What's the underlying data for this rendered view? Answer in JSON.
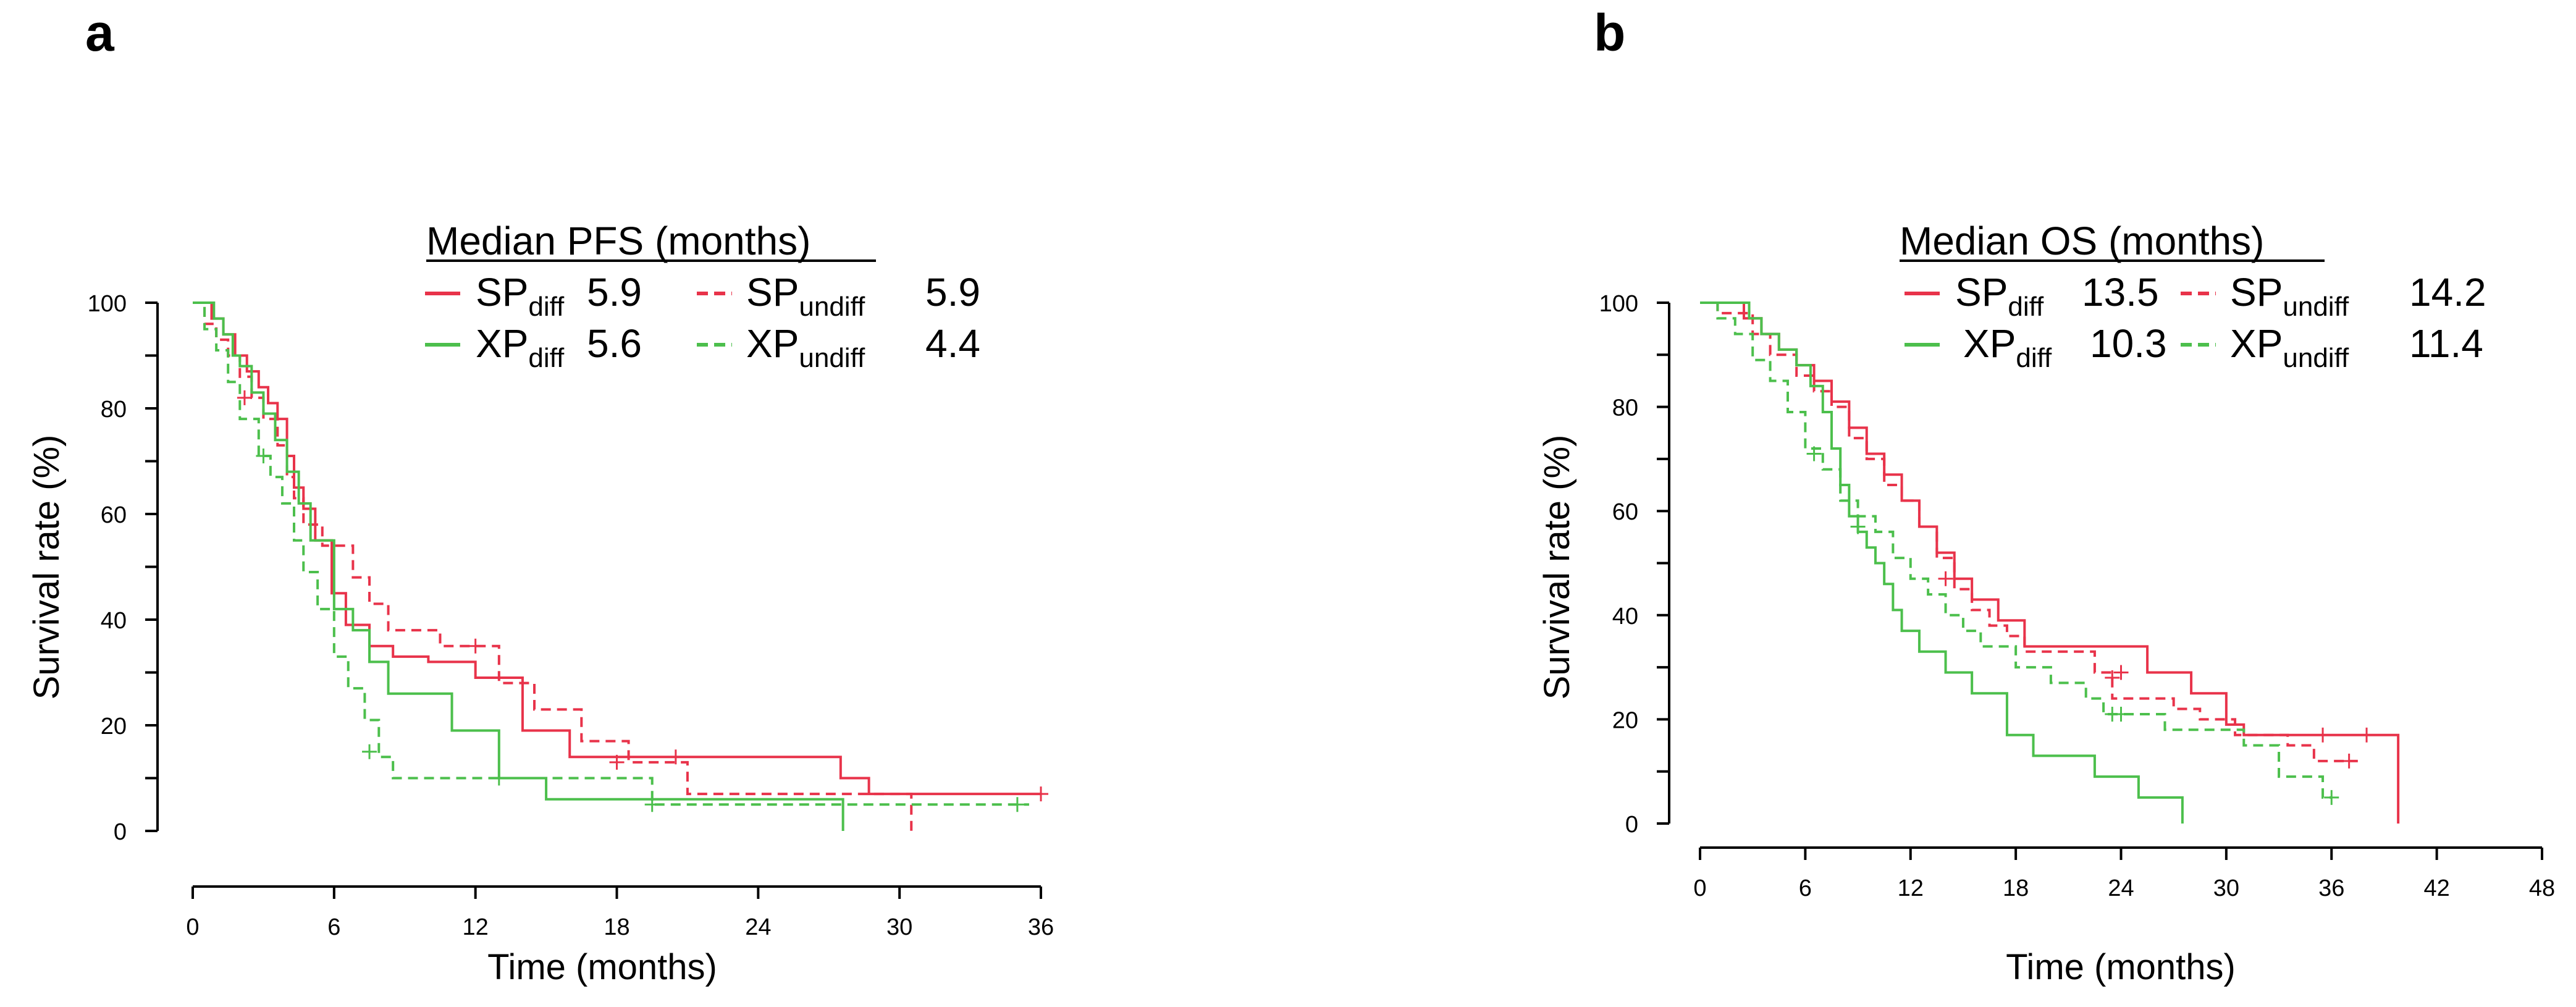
{
  "chart_data": [
    {
      "panel": "a",
      "type": "line",
      "title": "Median PFS (months)",
      "xlabel": "Time (months)",
      "ylabel": "Survival rate (%)",
      "xlim": [
        0,
        36
      ],
      "ylim": [
        0,
        100
      ],
      "xticks": [
        "0",
        "6",
        "12",
        "18",
        "24",
        "30",
        "36"
      ],
      "yticks": [
        "0",
        "20",
        "40",
        "60",
        "80",
        "100"
      ],
      "legend": [
        {
          "key": "SP_diff",
          "base": "SP",
          "sub": "diff",
          "value": "5.9",
          "color": "#e8334a",
          "dash": "solid"
        },
        {
          "key": "SP_undiff",
          "base": "SP",
          "sub": "undiff",
          "value": "5.9",
          "color": "#e8334a",
          "dash": "dashed"
        },
        {
          "key": "XP_diff",
          "base": "XP",
          "sub": "diff",
          "value": "5.6",
          "color": "#4cbf4c",
          "dash": "solid"
        },
        {
          "key": "XP_undiff",
          "base": "XP",
          "sub": "undiff",
          "value": "4.4",
          "color": "#4cbf4c",
          "dash": "dashed"
        }
      ],
      "series": [
        {
          "name": "SP_diff",
          "color": "#e8334a",
          "dash": "solid",
          "steps": [
            [
              0,
              100
            ],
            [
              0.8,
              97
            ],
            [
              1.3,
              94
            ],
            [
              1.8,
              90
            ],
            [
              2.3,
              87
            ],
            [
              2.8,
              84
            ],
            [
              3.2,
              81
            ],
            [
              3.6,
              78
            ],
            [
              4.0,
              71
            ],
            [
              4.3,
              65
            ],
            [
              4.7,
              61
            ],
            [
              5.2,
              55
            ],
            [
              5.9,
              45
            ],
            [
              6.5,
              39
            ],
            [
              7.5,
              35
            ],
            [
              8.5,
              33
            ],
            [
              10.0,
              32
            ],
            [
              12.0,
              29
            ],
            [
              14.0,
              19
            ],
            [
              16.0,
              14
            ],
            [
              27.5,
              10
            ],
            [
              28.7,
              7
            ],
            [
              36,
              7
            ]
          ],
          "censors": [
            [
              20.5,
              14
            ],
            [
              36,
              7
            ]
          ]
        },
        {
          "name": "SP_undiff",
          "color": "#e8334a",
          "dash": "dashed",
          "steps": [
            [
              0,
              100
            ],
            [
              0.5,
              96
            ],
            [
              1.0,
              93
            ],
            [
              1.5,
              90
            ],
            [
              2.0,
              86
            ],
            [
              2.5,
              82
            ],
            [
              3.0,
              78
            ],
            [
              3.6,
              73
            ],
            [
              4.0,
              67
            ],
            [
              4.3,
              63
            ],
            [
              4.7,
              58
            ],
            [
              5.5,
              54
            ],
            [
              6.8,
              48
            ],
            [
              7.5,
              43
            ],
            [
              8.3,
              38
            ],
            [
              10.5,
              35
            ],
            [
              13.0,
              28
            ],
            [
              14.5,
              23
            ],
            [
              16.5,
              17
            ],
            [
              18.5,
              13
            ],
            [
              21.0,
              7
            ],
            [
              30.5,
              4
            ],
            [
              30.5,
              0
            ]
          ],
          "censors": [
            [
              2.2,
              82
            ],
            [
              12.0,
              35
            ],
            [
              18.0,
              13
            ]
          ]
        },
        {
          "name": "XP_diff",
          "color": "#4cbf4c",
          "dash": "solid",
          "steps": [
            [
              0,
              100
            ],
            [
              0.9,
              97
            ],
            [
              1.3,
              94
            ],
            [
              1.7,
              90
            ],
            [
              2.0,
              88
            ],
            [
              2.5,
              83
            ],
            [
              3.0,
              79
            ],
            [
              3.5,
              74
            ],
            [
              4.0,
              68
            ],
            [
              4.5,
              62
            ],
            [
              5.0,
              55
            ],
            [
              6.0,
              42
            ],
            [
              6.8,
              38
            ],
            [
              7.5,
              32
            ],
            [
              8.3,
              26
            ],
            [
              11.0,
              19
            ],
            [
              13.0,
              10
            ],
            [
              15.0,
              6
            ],
            [
              27.6,
              6
            ],
            [
              27.6,
              0
            ]
          ],
          "censors": []
        },
        {
          "name": "XP_undiff",
          "color": "#4cbf4c",
          "dash": "dashed",
          "steps": [
            [
              0,
              100
            ],
            [
              0.5,
              95
            ],
            [
              1.0,
              91
            ],
            [
              1.5,
              85
            ],
            [
              2.0,
              78
            ],
            [
              2.8,
              71
            ],
            [
              3.3,
              67
            ],
            [
              3.8,
              62
            ],
            [
              4.3,
              55
            ],
            [
              4.7,
              49
            ],
            [
              5.3,
              42
            ],
            [
              6.0,
              33
            ],
            [
              6.6,
              27
            ],
            [
              7.3,
              21
            ],
            [
              7.9,
              14
            ],
            [
              8.5,
              10
            ],
            [
              13.0,
              10
            ],
            [
              19.5,
              5
            ],
            [
              35.5,
              5
            ]
          ],
          "censors": [
            [
              3.0,
              71
            ],
            [
              7.5,
              15
            ],
            [
              13.0,
              10
            ],
            [
              19.5,
              5
            ],
            [
              35.0,
              5
            ]
          ]
        }
      ]
    },
    {
      "panel": "b",
      "type": "line",
      "title": "Median OS (months)",
      "xlabel": "Time (months)",
      "ylabel": "Survival rate (%)",
      "xlim": [
        0,
        48
      ],
      "ylim": [
        0,
        100
      ],
      "xticks": [
        "0",
        "6",
        "12",
        "18",
        "24",
        "30",
        "36",
        "42",
        "48"
      ],
      "yticks": [
        "0",
        "20",
        "40",
        "60",
        "80",
        "100"
      ],
      "legend": [
        {
          "key": "SP_diff",
          "base": "SP",
          "sub": "diff",
          "value": "13.5",
          "color": "#e8334a",
          "dash": "solid"
        },
        {
          "key": "SP_undiff",
          "base": "SP",
          "sub": "undiff",
          "value": "14.2",
          "color": "#e8334a",
          "dash": "dashed"
        },
        {
          "key": "XP_diff",
          "base": "XP",
          "sub": "diff",
          "value": "10.3",
          "color": "#4cbf4c",
          "dash": "solid"
        },
        {
          "key": "XP_undiff",
          "base": "XP",
          "sub": "undiff",
          "value": "11.4",
          "color": "#4cbf4c",
          "dash": "dashed"
        }
      ],
      "series": [
        {
          "name": "SP_diff",
          "color": "#e8334a",
          "dash": "solid",
          "steps": [
            [
              0,
              100
            ],
            [
              1.5,
              100
            ],
            [
              2.5,
              97
            ],
            [
              3.5,
              94
            ],
            [
              4.5,
              91
            ],
            [
              5.5,
              88
            ],
            [
              6.5,
              85
            ],
            [
              7.5,
              81
            ],
            [
              8.5,
              76
            ],
            [
              9.5,
              71
            ],
            [
              10.5,
              67
            ],
            [
              11.5,
              62
            ],
            [
              12.5,
              57
            ],
            [
              13.5,
              52
            ],
            [
              14.5,
              47
            ],
            [
              15.5,
              43
            ],
            [
              17.0,
              39
            ],
            [
              18.5,
              34
            ],
            [
              22.0,
              34
            ],
            [
              25.5,
              29
            ],
            [
              28.0,
              25
            ],
            [
              30.0,
              19
            ],
            [
              31.0,
              17
            ],
            [
              39.8,
              17
            ],
            [
              39.8,
              0
            ]
          ],
          "censors": [
            [
              24.0,
              29
            ],
            [
              35.5,
              17
            ],
            [
              38.0,
              17
            ]
          ]
        },
        {
          "name": "SP_undiff",
          "color": "#e8334a",
          "dash": "dashed",
          "steps": [
            [
              0,
              100
            ],
            [
              1.0,
              98
            ],
            [
              3.0,
              94
            ],
            [
              4.0,
              90
            ],
            [
              5.5,
              86
            ],
            [
              6.5,
              83
            ],
            [
              7.5,
              80
            ],
            [
              8.5,
              74
            ],
            [
              9.5,
              70
            ],
            [
              10.5,
              65
            ],
            [
              11.5,
              62
            ],
            [
              12.5,
              57
            ],
            [
              13.5,
              51
            ],
            [
              14.5,
              45
            ],
            [
              15.5,
              41
            ],
            [
              16.5,
              38
            ],
            [
              17.5,
              36
            ],
            [
              18.5,
              33
            ],
            [
              22.5,
              29
            ],
            [
              23.5,
              24
            ],
            [
              27.0,
              22
            ],
            [
              28.5,
              20
            ],
            [
              30.5,
              17
            ],
            [
              33.5,
              15
            ],
            [
              35.0,
              12
            ],
            [
              37.5,
              12
            ]
          ],
          "censors": [
            [
              14.0,
              47
            ],
            [
              23.5,
              28
            ],
            [
              37.0,
              12
            ]
          ]
        },
        {
          "name": "XP_diff",
          "color": "#4cbf4c",
          "dash": "solid",
          "steps": [
            [
              0,
              100
            ],
            [
              1.5,
              100
            ],
            [
              2.8,
              97
            ],
            [
              3.5,
              94
            ],
            [
              4.5,
              91
            ],
            [
              5.5,
              88
            ],
            [
              6.3,
              84
            ],
            [
              7.0,
              79
            ],
            [
              7.5,
              72
            ],
            [
              8.0,
              65
            ],
            [
              8.5,
              59
            ],
            [
              9.0,
              56
            ],
            [
              9.5,
              53
            ],
            [
              10.0,
              50
            ],
            [
              10.5,
              46
            ],
            [
              11.0,
              41
            ],
            [
              11.5,
              37
            ],
            [
              12.5,
              33
            ],
            [
              14.0,
              29
            ],
            [
              15.5,
              25
            ],
            [
              17.5,
              17
            ],
            [
              19.0,
              13
            ],
            [
              22.5,
              9
            ],
            [
              25.0,
              5
            ],
            [
              27.5,
              5
            ],
            [
              27.5,
              0
            ]
          ],
          "censors": [
            [
              9.0,
              57
            ]
          ]
        },
        {
          "name": "XP_undiff",
          "color": "#4cbf4c",
          "dash": "dashed",
          "steps": [
            [
              0,
              100
            ],
            [
              1.0,
              97
            ],
            [
              2.0,
              94
            ],
            [
              3.0,
              89
            ],
            [
              4.0,
              85
            ],
            [
              5.0,
              79
            ],
            [
              6.0,
              72
            ],
            [
              7.0,
              68
            ],
            [
              8.0,
              62
            ],
            [
              9.0,
              59
            ],
            [
              10.0,
              56
            ],
            [
              11.0,
              51
            ],
            [
              12.0,
              47
            ],
            [
              13.0,
              44
            ],
            [
              14.0,
              40
            ],
            [
              15.0,
              37
            ],
            [
              16.0,
              34
            ],
            [
              18.0,
              30
            ],
            [
              20.0,
              27
            ],
            [
              22.0,
              24
            ],
            [
              23.0,
              21
            ],
            [
              26.5,
              18
            ],
            [
              31.0,
              15
            ],
            [
              33.0,
              9
            ],
            [
              35.5,
              5
            ],
            [
              36.0,
              5
            ]
          ],
          "censors": [
            [
              6.5,
              71
            ],
            [
              23.5,
              21
            ],
            [
              24.0,
              21
            ],
            [
              36.0,
              5
            ]
          ]
        }
      ]
    }
  ]
}
